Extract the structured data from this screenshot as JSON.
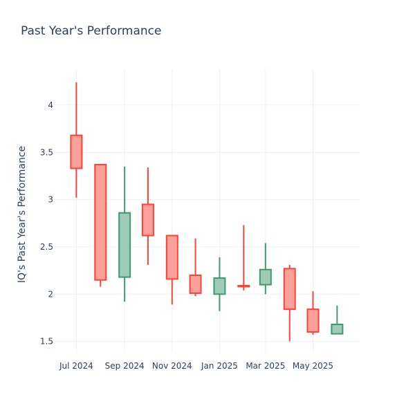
{
  "chart_data": {
    "type": "candlestick",
    "title": "Past Year's Performance",
    "xlabel": "",
    "ylabel": "IQ's Past Year's Performance",
    "ylim": [
      1.38,
      4.38
    ],
    "yticks": [
      1.5,
      2,
      2.5,
      3,
      3.5,
      4
    ],
    "ytick_labels": [
      "1.5",
      "2",
      "2.5",
      "3",
      "3.5",
      "4"
    ],
    "xlim": [
      "2024-06-04",
      "2025-06-30"
    ],
    "xticks": [
      "2024-07-01",
      "2024-09-01",
      "2024-11-01",
      "2025-01-01",
      "2025-03-01",
      "2025-05-01"
    ],
    "xtick_labels": [
      "Jul 2024",
      "Sep 2024",
      "Nov 2024",
      "Jan 2025",
      "Mar 2025",
      "May 2025"
    ],
    "grid": true,
    "increasing_color": "#3d9970",
    "increasing_fill": "#9ecbb7",
    "decreasing_color": "#ff4136",
    "decreasing_fill": "#ffa09a",
    "candles": [
      {
        "date": "2024-07-01",
        "open": 3.68,
        "high": 4.24,
        "low": 3.02,
        "close": 3.33
      },
      {
        "date": "2024-08-01",
        "open": 3.37,
        "high": 3.37,
        "low": 2.08,
        "close": 2.15
      },
      {
        "date": "2024-09-01",
        "open": 2.18,
        "high": 3.35,
        "low": 1.92,
        "close": 2.86
      },
      {
        "date": "2024-10-01",
        "open": 2.95,
        "high": 3.34,
        "low": 2.31,
        "close": 2.62
      },
      {
        "date": "2024-11-01",
        "open": 2.62,
        "high": 2.62,
        "low": 1.89,
        "close": 2.16
      },
      {
        "date": "2024-12-01",
        "open": 2.2,
        "high": 2.59,
        "low": 1.98,
        "close": 2.01
      },
      {
        "date": "2025-01-01",
        "open": 2.0,
        "high": 2.39,
        "low": 1.82,
        "close": 2.17
      },
      {
        "date": "2025-02-01",
        "open": 2.09,
        "high": 2.73,
        "low": 2.04,
        "close": 2.08
      },
      {
        "date": "2025-03-01",
        "open": 2.1,
        "high": 2.54,
        "low": 2.0,
        "close": 2.26
      },
      {
        "date": "2025-04-01",
        "open": 2.27,
        "high": 2.31,
        "low": 1.5,
        "close": 1.84
      },
      {
        "date": "2025-05-01",
        "open": 1.84,
        "high": 2.03,
        "low": 1.57,
        "close": 1.6
      },
      {
        "date": "2025-06-01",
        "open": 1.58,
        "high": 1.88,
        "low": 1.58,
        "close": 1.68
      }
    ]
  }
}
